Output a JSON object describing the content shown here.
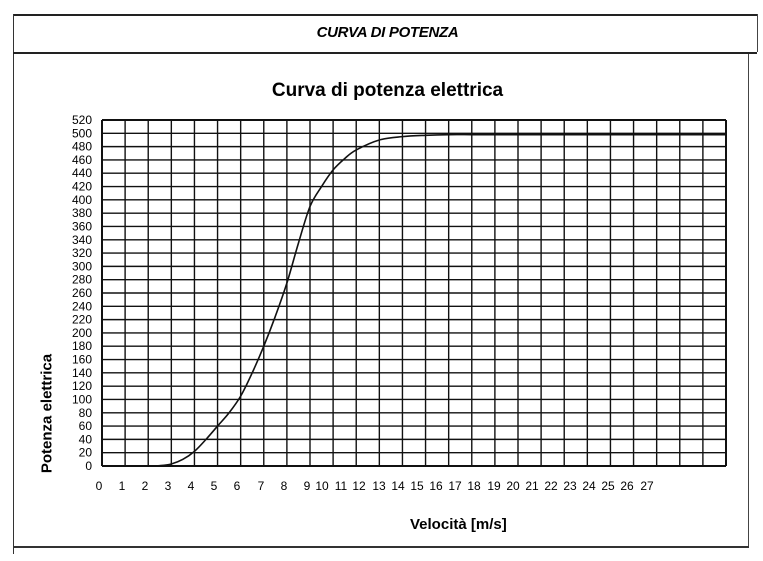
{
  "section": {
    "title": "CURVA DI POTENZA"
  },
  "chart_data": {
    "type": "line",
    "title": "Curva di potenza elettrica",
    "xlabel": "Velocità [m/s]",
    "ylabel": "Potenza elettrica",
    "xlim": [
      0,
      27
    ],
    "ylim": [
      0,
      520
    ],
    "grid": true,
    "legend": null,
    "x_ticks": [
      0,
      1,
      2,
      3,
      4,
      5,
      6,
      7,
      8,
      9,
      10,
      11,
      12,
      13,
      14,
      15,
      16,
      17,
      18,
      19,
      20,
      21,
      22,
      23,
      24,
      25,
      26,
      27
    ],
    "y_ticks": [
      0,
      20,
      40,
      60,
      80,
      100,
      120,
      140,
      160,
      180,
      200,
      220,
      240,
      260,
      280,
      300,
      320,
      340,
      360,
      380,
      400,
      420,
      440,
      460,
      480,
      500,
      520
    ],
    "series": [
      {
        "name": "Potenza elettrica",
        "x": [
          0,
          1,
          2,
          2.5,
          3,
          3.5,
          4,
          4.5,
          5,
          5.5,
          6,
          6.5,
          7,
          7.5,
          8,
          8.5,
          9,
          9.5,
          10,
          10.5,
          11,
          12,
          13,
          14,
          15,
          16,
          17,
          18,
          19,
          20,
          21,
          22,
          23,
          24,
          25,
          26,
          27
        ],
        "values": [
          0,
          0,
          0,
          0.5,
          3,
          10,
          22,
          40,
          60,
          80,
          105,
          140,
          180,
          225,
          275,
          335,
          390,
          420,
          445,
          462,
          475,
          490,
          495,
          497,
          498,
          498,
          498,
          498,
          498,
          498,
          498,
          498,
          498,
          498,
          498,
          498,
          498
        ]
      }
    ]
  }
}
